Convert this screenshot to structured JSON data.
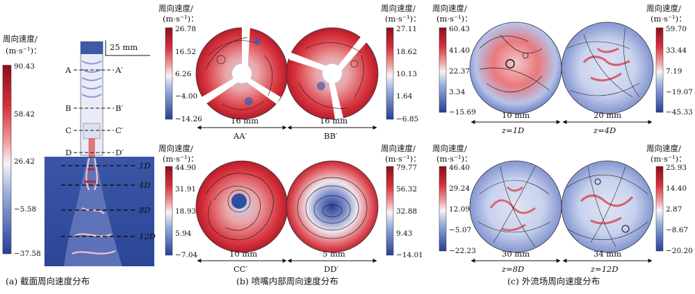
{
  "colorbar_title_line1": "周向速度/",
  "colorbar_unit": "(m·s⁻¹)：",
  "panel_a": {
    "caption": "(a) 截面周向速度分布",
    "scale_bar": "25 mm",
    "colorbar_ticks": [
      "90.43",
      "58.42",
      "26.42",
      "−5.58",
      "−37.58"
    ],
    "sections": [
      {
        "left": "A",
        "right": "A′"
      },
      {
        "left": "B",
        "right": "B′"
      },
      {
        "left": "C",
        "right": "C′"
      },
      {
        "left": "D",
        "right": "D′"
      }
    ],
    "downstream_labels": [
      "1D",
      "4D",
      "8D",
      "12D"
    ]
  },
  "panel_b": {
    "caption": "(b) 喷嘴内部周向速度分布",
    "top_left_ticks": [
      "26.78",
      "16.52",
      "6.26",
      "−4.00",
      "−14.26"
    ],
    "top_right_ticks": [
      "27.11",
      "18.62",
      "10.13",
      "1.64",
      "−6.85"
    ],
    "bottom_left_ticks": [
      "44.90",
      "31.91",
      "18.93",
      "5.94",
      "−7.04"
    ],
    "bottom_right_ticks": [
      "79.77",
      "56.32",
      "32.88",
      "9.43",
      "−14.01"
    ],
    "discs": [
      {
        "size": "16 mm",
        "section": "AA′"
      },
      {
        "size": "16 mm",
        "section": "BB′"
      },
      {
        "size": "10 mm",
        "section": "CC′"
      },
      {
        "size": "5 mm",
        "section": "DD′"
      }
    ]
  },
  "panel_c": {
    "caption": "(c) 外流场周向速度分布",
    "top_left_ticks": [
      "60.43",
      "41.40",
      "22.37",
      "3.34",
      "−15.69"
    ],
    "top_right_ticks": [
      "59.70",
      "33.44",
      "7.19",
      "−19.07",
      "−45.33"
    ],
    "bottom_left_ticks": [
      "46.40",
      "29.24",
      "12.09",
      "−5.07",
      "−22.23"
    ],
    "bottom_right_ticks": [
      "25.93",
      "14.40",
      "2.87",
      "−8.67",
      "−20.20"
    ],
    "discs": [
      {
        "size": "10 mm",
        "section": "z=1D"
      },
      {
        "size": "20 mm",
        "section": "z=4D"
      },
      {
        "size": "30 mm",
        "section": "z=8D"
      },
      {
        "size": "34 mm",
        "section": "z=12D"
      }
    ]
  },
  "colors": {
    "high": "#b2182b",
    "mid": "#f4f1f4",
    "low": "#2c4fa0",
    "line": "#111111"
  }
}
